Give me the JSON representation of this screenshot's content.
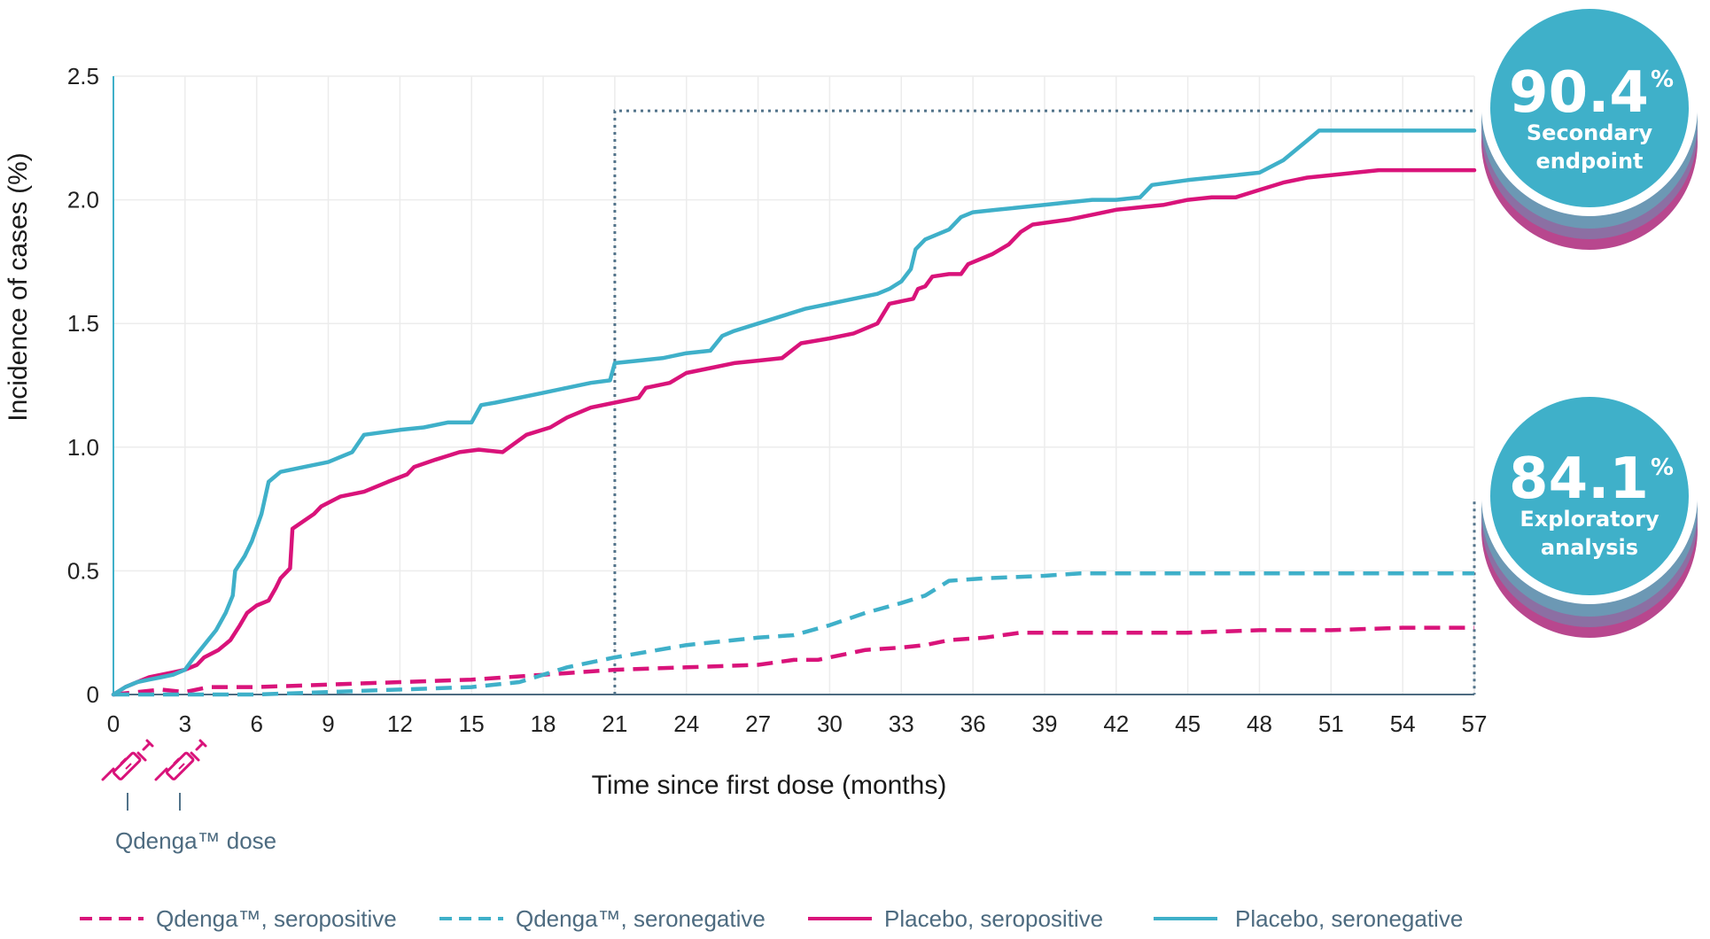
{
  "colors": {
    "qdenga": "#d9137a",
    "placebo_neg": "#3fb0c9",
    "bracket": "#52738a",
    "grid": "#ececec",
    "axis": "#3fb0c9"
  },
  "icons": {
    "dose": "syringe-icon"
  },
  "chart_data": {
    "type": "line",
    "title": "",
    "xlabel": "Time since first dose (months)",
    "ylabel": "Incidence of cases (%)",
    "xlim": [
      0,
      57
    ],
    "ylim": [
      0,
      2.5
    ],
    "xticks": [
      0,
      3,
      6,
      9,
      12,
      15,
      18,
      21,
      24,
      27,
      30,
      33,
      36,
      39,
      42,
      45,
      48,
      51,
      54,
      57
    ],
    "yticks": [
      {
        "value": 0,
        "label": "0"
      },
      {
        "value": 0.5,
        "label": "0.5"
      },
      {
        "value": 1.0,
        "label": "1.0"
      },
      {
        "value": 1.5,
        "label": "1.5"
      },
      {
        "value": 2.0,
        "label": "2.0"
      },
      {
        "value": 2.5,
        "label": "2.5"
      }
    ],
    "series": [
      {
        "name": "Qdenga™, seropositive",
        "style": "dashed",
        "color": "#d9137a",
        "points": [
          [
            0,
            0
          ],
          [
            1,
            0.01
          ],
          [
            2,
            0.02
          ],
          [
            3,
            0.01
          ],
          [
            4,
            0.03
          ],
          [
            6,
            0.03
          ],
          [
            9,
            0.04
          ],
          [
            12,
            0.05
          ],
          [
            15,
            0.06
          ],
          [
            18,
            0.08
          ],
          [
            21,
            0.1
          ],
          [
            24,
            0.11
          ],
          [
            27,
            0.12
          ],
          [
            28.5,
            0.14
          ],
          [
            29.5,
            0.14
          ],
          [
            30.5,
            0.16
          ],
          [
            31.5,
            0.18
          ],
          [
            33,
            0.19
          ],
          [
            34,
            0.2
          ],
          [
            35,
            0.22
          ],
          [
            36.5,
            0.23
          ],
          [
            38,
            0.25
          ],
          [
            42,
            0.25
          ],
          [
            45,
            0.25
          ],
          [
            48,
            0.26
          ],
          [
            51,
            0.26
          ],
          [
            54,
            0.27
          ],
          [
            57,
            0.27
          ]
        ]
      },
      {
        "name": "Qdenga™, seronegative",
        "style": "dashed",
        "color": "#3fb0c9",
        "points": [
          [
            0,
            0
          ],
          [
            3,
            0
          ],
          [
            6,
            0
          ],
          [
            9,
            0.01
          ],
          [
            12,
            0.02
          ],
          [
            15,
            0.03
          ],
          [
            17,
            0.05
          ],
          [
            18,
            0.08
          ],
          [
            19,
            0.11
          ],
          [
            21,
            0.15
          ],
          [
            24,
            0.2
          ],
          [
            27,
            0.23
          ],
          [
            28.5,
            0.24
          ],
          [
            30,
            0.28
          ],
          [
            31.5,
            0.33
          ],
          [
            33,
            0.37
          ],
          [
            34,
            0.4
          ],
          [
            35,
            0.46
          ],
          [
            36.5,
            0.47
          ],
          [
            39,
            0.48
          ],
          [
            40.5,
            0.49
          ],
          [
            45,
            0.49
          ],
          [
            48,
            0.49
          ],
          [
            51,
            0.49
          ],
          [
            54,
            0.49
          ],
          [
            57,
            0.49
          ]
        ]
      },
      {
        "name": "Placebo, seropositive",
        "style": "solid",
        "color": "#d9137a",
        "points": [
          [
            0,
            0
          ],
          [
            0.5,
            0.03
          ],
          [
            1,
            0.05
          ],
          [
            1.5,
            0.07
          ],
          [
            2,
            0.08
          ],
          [
            2.5,
            0.09
          ],
          [
            3,
            0.1
          ],
          [
            3.5,
            0.12
          ],
          [
            3.8,
            0.15
          ],
          [
            4.4,
            0.18
          ],
          [
            4.9,
            0.22
          ],
          [
            5.3,
            0.28
          ],
          [
            5.6,
            0.33
          ],
          [
            6.0,
            0.36
          ],
          [
            6.5,
            0.38
          ],
          [
            6.8,
            0.43
          ],
          [
            7.0,
            0.47
          ],
          [
            7.4,
            0.51
          ],
          [
            7.5,
            0.67
          ],
          [
            8.4,
            0.73
          ],
          [
            8.7,
            0.76
          ],
          [
            9.5,
            0.8
          ],
          [
            10.5,
            0.82
          ],
          [
            11.5,
            0.86
          ],
          [
            12.3,
            0.89
          ],
          [
            12.6,
            0.92
          ],
          [
            13.5,
            0.95
          ],
          [
            14.5,
            0.98
          ],
          [
            15.3,
            0.99
          ],
          [
            16.3,
            0.98
          ],
          [
            17.3,
            1.05
          ],
          [
            18.3,
            1.08
          ],
          [
            19,
            1.12
          ],
          [
            20,
            1.16
          ],
          [
            21,
            1.18
          ],
          [
            22,
            1.2
          ],
          [
            22.3,
            1.24
          ],
          [
            23.3,
            1.26
          ],
          [
            24,
            1.3
          ],
          [
            25,
            1.32
          ],
          [
            26,
            1.34
          ],
          [
            27,
            1.35
          ],
          [
            28,
            1.36
          ],
          [
            28.8,
            1.42
          ],
          [
            30,
            1.44
          ],
          [
            31,
            1.46
          ],
          [
            32,
            1.5
          ],
          [
            32.5,
            1.58
          ],
          [
            33,
            1.59
          ],
          [
            33.5,
            1.6
          ],
          [
            33.7,
            1.64
          ],
          [
            34,
            1.65
          ],
          [
            34.3,
            1.69
          ],
          [
            35,
            1.7
          ],
          [
            35.5,
            1.7
          ],
          [
            35.8,
            1.74
          ],
          [
            36.8,
            1.78
          ],
          [
            37.5,
            1.82
          ],
          [
            38,
            1.87
          ],
          [
            38.5,
            1.9
          ],
          [
            40,
            1.92
          ],
          [
            41,
            1.94
          ],
          [
            42,
            1.96
          ],
          [
            43,
            1.97
          ],
          [
            44,
            1.98
          ],
          [
            45,
            2.0
          ],
          [
            46,
            2.01
          ],
          [
            47,
            2.01
          ],
          [
            48,
            2.04
          ],
          [
            49,
            2.07
          ],
          [
            50,
            2.09
          ],
          [
            51,
            2.1
          ],
          [
            52,
            2.11
          ],
          [
            53,
            2.12
          ],
          [
            54,
            2.12
          ],
          [
            55,
            2.12
          ],
          [
            57,
            2.12
          ]
        ]
      },
      {
        "name": "Placebo, seronegative",
        "style": "solid",
        "color": "#3fb0c9",
        "points": [
          [
            0,
            0
          ],
          [
            0.5,
            0.03
          ],
          [
            1,
            0.05
          ],
          [
            1.5,
            0.06
          ],
          [
            2,
            0.07
          ],
          [
            2.5,
            0.08
          ],
          [
            3,
            0.1
          ],
          [
            3.3,
            0.14
          ],
          [
            3.8,
            0.2
          ],
          [
            4.3,
            0.26
          ],
          [
            4.7,
            0.33
          ],
          [
            5.0,
            0.4
          ],
          [
            5.1,
            0.5
          ],
          [
            5.5,
            0.56
          ],
          [
            5.8,
            0.62
          ],
          [
            6.2,
            0.73
          ],
          [
            6.5,
            0.86
          ],
          [
            7,
            0.9
          ],
          [
            8,
            0.92
          ],
          [
            9,
            0.94
          ],
          [
            10,
            0.98
          ],
          [
            10.5,
            1.05
          ],
          [
            12,
            1.07
          ],
          [
            13,
            1.08
          ],
          [
            14,
            1.1
          ],
          [
            15,
            1.1
          ],
          [
            15.4,
            1.17
          ],
          [
            16,
            1.18
          ],
          [
            17,
            1.2
          ],
          [
            18,
            1.22
          ],
          [
            19,
            1.24
          ],
          [
            20,
            1.26
          ],
          [
            20.8,
            1.27
          ],
          [
            21,
            1.34
          ],
          [
            22,
            1.35
          ],
          [
            23,
            1.36
          ],
          [
            24,
            1.38
          ],
          [
            25,
            1.39
          ],
          [
            25.5,
            1.45
          ],
          [
            26,
            1.47
          ],
          [
            27,
            1.5
          ],
          [
            28,
            1.53
          ],
          [
            29,
            1.56
          ],
          [
            30,
            1.58
          ],
          [
            31,
            1.6
          ],
          [
            32,
            1.62
          ],
          [
            32.5,
            1.64
          ],
          [
            33,
            1.67
          ],
          [
            33.4,
            1.72
          ],
          [
            33.6,
            1.8
          ],
          [
            34,
            1.84
          ],
          [
            35,
            1.88
          ],
          [
            35.5,
            1.93
          ],
          [
            36,
            1.95
          ],
          [
            37,
            1.96
          ],
          [
            38,
            1.97
          ],
          [
            39,
            1.98
          ],
          [
            40,
            1.99
          ],
          [
            41,
            2.0
          ],
          [
            42,
            2.0
          ],
          [
            43,
            2.01
          ],
          [
            43.5,
            2.06
          ],
          [
            45,
            2.08
          ],
          [
            46,
            2.09
          ],
          [
            47,
            2.1
          ],
          [
            48,
            2.11
          ],
          [
            49,
            2.16
          ],
          [
            49.5,
            2.2
          ],
          [
            50,
            2.24
          ],
          [
            50.5,
            2.28
          ],
          [
            52,
            2.28
          ],
          [
            54,
            2.28
          ],
          [
            57,
            2.28
          ]
        ]
      }
    ],
    "legend": [
      "Qdenga™, seropositive",
      "Qdenga™, seronegative",
      "Placebo, seropositive",
      "Placebo, seronegative"
    ],
    "legend_position": "bottom",
    "brackets": [
      {
        "name": "secondary-endpoint-bracket",
        "x_start": 21,
        "x_end": 57,
        "y_level": 2.36
      },
      {
        "name": "exploratory-analysis-bracket",
        "x_start": 57,
        "y_level": 0.78
      }
    ],
    "annotations": {
      "dose_label": "Qdenga™ dose",
      "dose_months": [
        0,
        3
      ]
    },
    "callouts": [
      {
        "value": "90.4",
        "unit": "%",
        "label_line1": "Secondary",
        "label_line2": "endpoint"
      },
      {
        "value": "84.1",
        "unit": "%",
        "label_line1": "Exploratory",
        "label_line2": "analysis"
      }
    ]
  }
}
